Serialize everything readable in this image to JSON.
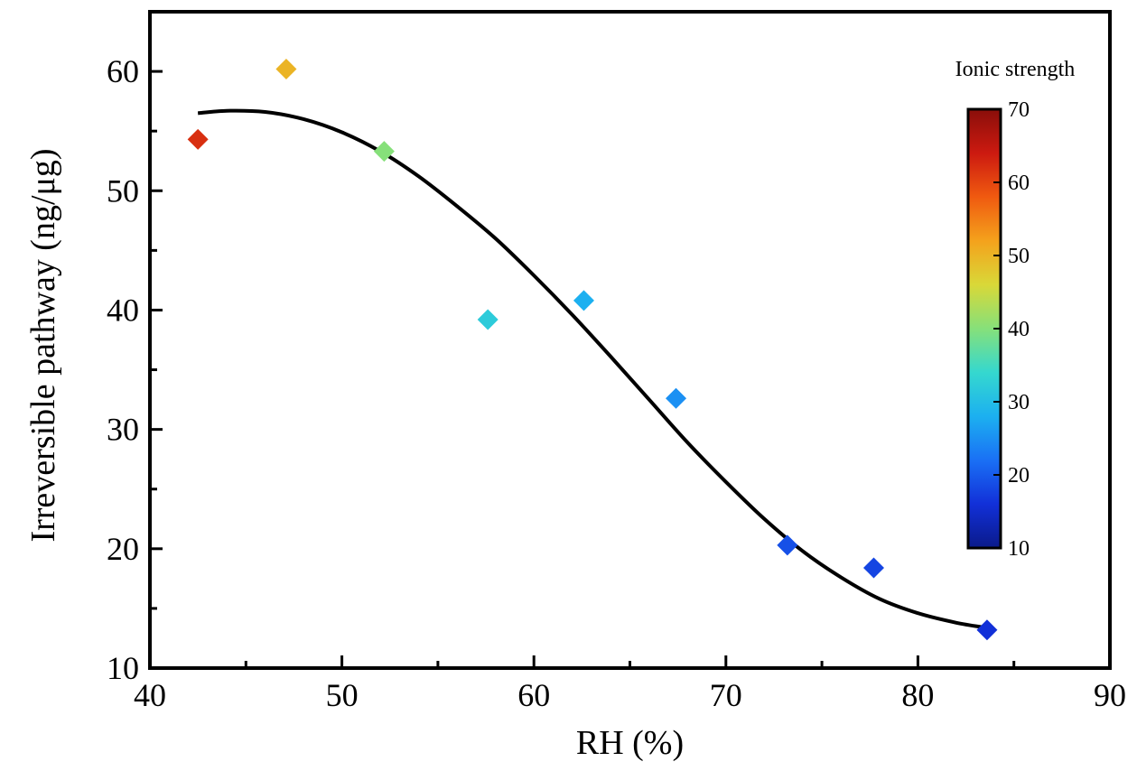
{
  "chart_data": {
    "type": "scatter",
    "xlabel": "RH (%)",
    "ylabel": "Irreversible pathway (ng/μg)",
    "xlim": [
      40,
      90
    ],
    "ylim": [
      10,
      65
    ],
    "x_ticks": [
      40,
      50,
      60,
      70,
      80,
      90
    ],
    "y_ticks": [
      10,
      20,
      30,
      40,
      50,
      60
    ],
    "x_minor_step": 5,
    "y_minor_step": 5,
    "grid": false,
    "marker": "diamond",
    "points": [
      {
        "x": 42.5,
        "y": 54.3,
        "ionic_strength": 62
      },
      {
        "x": 47.1,
        "y": 60.2,
        "ionic_strength": 50
      },
      {
        "x": 52.2,
        "y": 53.3,
        "ionic_strength": 40
      },
      {
        "x": 57.6,
        "y": 39.2,
        "ionic_strength": 32
      },
      {
        "x": 62.6,
        "y": 40.8,
        "ionic_strength": 28
      },
      {
        "x": 67.4,
        "y": 32.6,
        "ionic_strength": 25
      },
      {
        "x": 73.2,
        "y": 20.3,
        "ionic_strength": 19
      },
      {
        "x": 77.7,
        "y": 18.4,
        "ionic_strength": 18
      },
      {
        "x": 83.6,
        "y": 13.2,
        "ionic_strength": 16
      }
    ],
    "fit_curve": {
      "color": "#000000",
      "x": [
        42.5,
        44,
        46,
        48,
        50,
        52,
        54,
        56,
        58,
        60,
        62,
        64,
        66,
        68,
        70,
        72,
        74,
        76,
        78,
        80,
        82,
        83.5
      ],
      "y": [
        56.5,
        56.7,
        56.6,
        56.0,
        54.9,
        53.3,
        51.2,
        48.7,
        46.0,
        42.9,
        39.6,
        36.1,
        32.5,
        28.9,
        25.6,
        22.5,
        19.8,
        17.6,
        15.8,
        14.6,
        13.8,
        13.4
      ]
    },
    "colorbar": {
      "title": "Ionic strength",
      "range": [
        10,
        70
      ],
      "ticks": [
        10,
        20,
        30,
        40,
        50,
        60,
        70
      ],
      "colormap": [
        "#0a1a8a",
        "#1230d8",
        "#1a70f5",
        "#1cb0f0",
        "#35d8cf",
        "#86e07a",
        "#d9d838",
        "#f4a21c",
        "#f05a10",
        "#cc1a10",
        "#8a0e0a"
      ]
    }
  }
}
